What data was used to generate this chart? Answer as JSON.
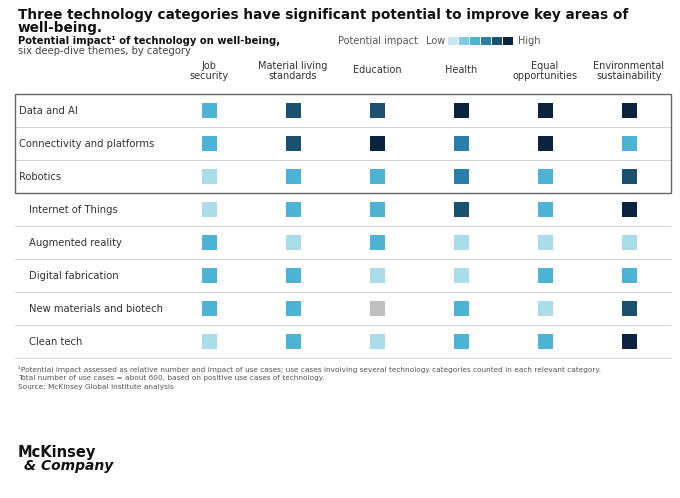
{
  "title_line1": "Three technology categories have significant potential to improve key areas of",
  "title_line2": "well-being.",
  "subtitle_bold": "Potential impact¹ of technology on well-being,",
  "subtitle_normal": "six deep-dive themes, by category",
  "legend_label": "Potential impact",
  "legend_low": "Low",
  "legend_high": "High",
  "columns": [
    "Job\nsecurity",
    "Material living\nstandards",
    "Education",
    "Health",
    "Equal\nopportunities",
    "Environmental\nsustainability"
  ],
  "rows": [
    "Data and AI",
    "Connectivity and platforms",
    "Robotics",
    "Internet of Things",
    "Augmented reality",
    "Digital fabrication",
    "New materials and biotech",
    "Clean tech"
  ],
  "colors": {
    "c1": "#aadcea",
    "c2": "#4db3d4",
    "c3": "#2a7fa8",
    "c4": "#1b5070",
    "c5": "#0c2340",
    "c6": "#b0c4de",
    "gray": "#c0c0c0"
  },
  "grid_data": [
    [
      "c2",
      "c4",
      "c4",
      "c5",
      "c5",
      "c5"
    ],
    [
      "c2",
      "c4",
      "c5",
      "c3",
      "c5",
      "c2"
    ],
    [
      "c1",
      "c2",
      "c2",
      "c3",
      "c2",
      "c4"
    ],
    [
      "c1",
      "c2",
      "c2",
      "c4",
      "c2",
      "c5"
    ],
    [
      "c2",
      "c1",
      "c2",
      "c1",
      "c1",
      "c1"
    ],
    [
      "c2",
      "c2",
      "c1",
      "c1",
      "c2",
      "c2"
    ],
    [
      "c2",
      "c2",
      "gray",
      "c2",
      "c1",
      "c4"
    ],
    [
      "c1",
      "c2",
      "c1",
      "c2",
      "c2",
      "c5"
    ]
  ],
  "footnote1": "¹Potential impact assessed as relative number and impact of use cases; use cases involving several technology categories counted in each relevant category.",
  "footnote2": "Total number of use cases = about 600, based on positive use cases of technology.",
  "footnote3": "Source: McKinsey Global Institute analysis",
  "bg_color": "#ffffff",
  "legend_colors": [
    "#c5e8f5",
    "#7dcae8",
    "#4db3d4",
    "#2a7fa8",
    "#1b5070",
    "#0c2340"
  ]
}
